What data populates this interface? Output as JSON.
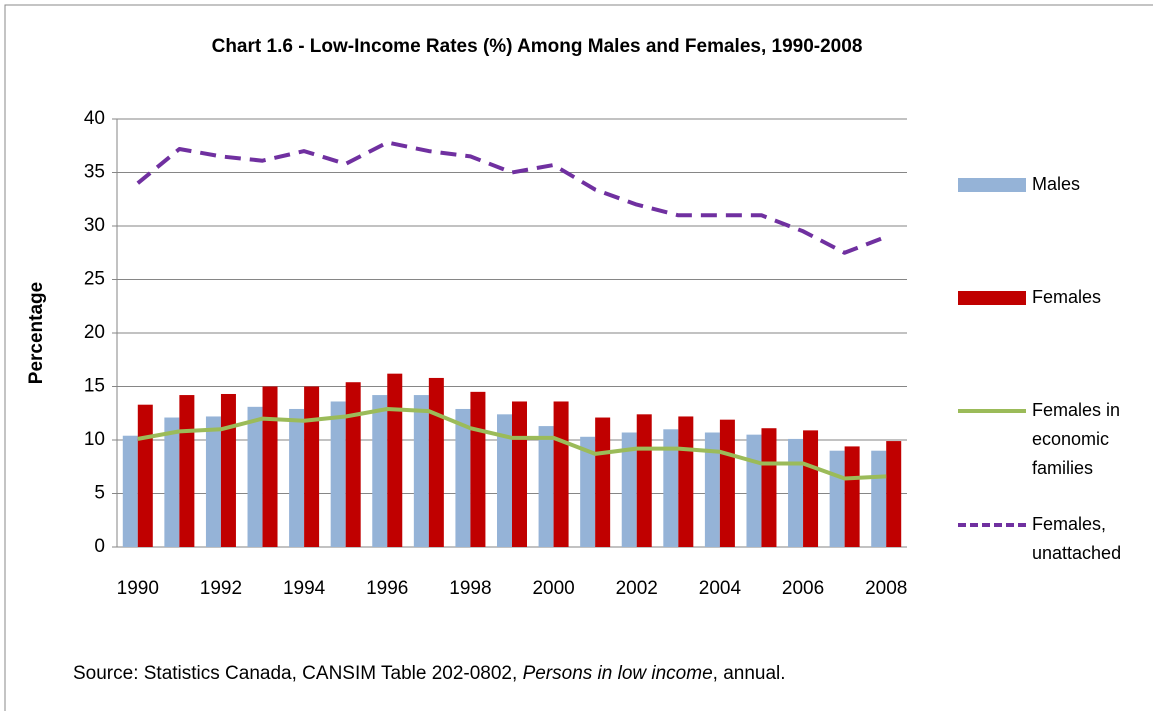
{
  "chart_data": {
    "type": "bar",
    "title": "Chart 1.6 - Low-Income Rates (%) Among Males and Females, 1990-2008",
    "y_label": "Percentage",
    "categories": [
      "1990",
      null,
      "1992",
      null,
      "1994",
      null,
      "1996",
      null,
      "1998",
      null,
      "2000",
      null,
      "2002",
      null,
      "2004",
      null,
      "2006",
      null,
      "2008"
    ],
    "series": [
      {
        "name": "Males",
        "type": "bar",
        "color": "#95b3d7",
        "values": [
          10.4,
          12.1,
          12.2,
          13.1,
          12.9,
          13.6,
          14.2,
          14.2,
          12.9,
          12.4,
          11.3,
          10.3,
          10.7,
          11.0,
          10.7,
          10.5,
          10.1,
          9.0,
          9.0
        ]
      },
      {
        "name": "Females",
        "type": "bar",
        "color": "#c00000",
        "values": [
          13.3,
          14.2,
          14.3,
          15.0,
          15.0,
          15.4,
          16.2,
          15.8,
          14.5,
          13.6,
          13.6,
          12.1,
          12.4,
          12.2,
          11.9,
          11.1,
          10.9,
          9.4,
          9.9
        ]
      },
      {
        "name": "Females in economic families",
        "type": "line",
        "color": "#9bbb59",
        "dash": false,
        "values": [
          10.1,
          10.8,
          11.0,
          12.0,
          11.8,
          12.2,
          12.9,
          12.7,
          11.1,
          10.2,
          10.2,
          8.7,
          9.2,
          9.2,
          8.9,
          7.8,
          7.8,
          6.4,
          6.6
        ]
      },
      {
        "name": "Females, unattached",
        "type": "line",
        "color": "#7030a0",
        "dash": true,
        "values": [
          34.0,
          37.2,
          36.5,
          36.1,
          37.0,
          35.8,
          37.8,
          37.0,
          36.5,
          35.0,
          35.7,
          33.4,
          32.0,
          31.0,
          31.0,
          31.0,
          29.5,
          27.5,
          29.0
        ]
      }
    ],
    "ylim": [
      0,
      40
    ],
    "yticks": [
      0,
      5,
      10,
      15,
      20,
      25,
      30,
      35,
      40
    ],
    "grid": true,
    "legend": "right",
    "note": [
      "Source: Statistics Canada, CANSIM Table 202-0802, ",
      "Persons in low income",
      ", annual."
    ]
  }
}
